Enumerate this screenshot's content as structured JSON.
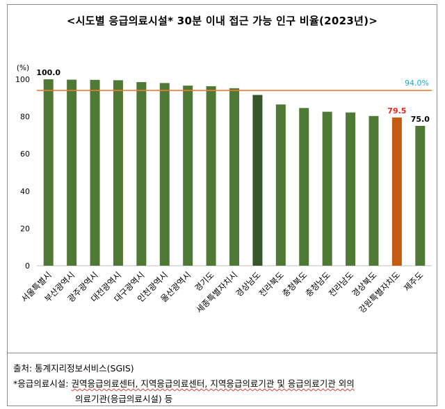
{
  "title": "<시도별 응급의료시설* 30분 이내 접근 가능 인구 비율(2023년)>",
  "chart_data": {
    "type": "bar",
    "title": "<시도별 응급의료시설* 30분 이내 접근 가능 인구 비율(2023년)>",
    "ylabel": "(%)",
    "ylim": [
      0,
      100
    ],
    "yticks": [
      0,
      20,
      40,
      60,
      80,
      100
    ],
    "categories": [
      "서울특별시",
      "부산광역시",
      "광주광역시",
      "대전광역시",
      "대구광역시",
      "인천광역시",
      "울산광역시",
      "경기도",
      "세종특별자치시",
      "경상남도",
      "전라북도",
      "충청북도",
      "충청남도",
      "전라남도",
      "경상북도",
      "강원특별자치도",
      "제주도"
    ],
    "values": [
      100.0,
      99.8,
      99.7,
      99.5,
      98.5,
      98.0,
      96.6,
      96.3,
      95.2,
      91.6,
      86.5,
      84.6,
      82.6,
      82.2,
      80.3,
      79.5,
      75.0
    ],
    "bar_colors": [
      "#4f7a35",
      "#4f7a35",
      "#4f7a35",
      "#4f7a35",
      "#4f7a35",
      "#4f7a35",
      "#4f7a35",
      "#4f7a35",
      "#4f7a35",
      "#37572a",
      "#4f7a35",
      "#4f7a35",
      "#4f7a35",
      "#4f7a35",
      "#4f7a35",
      "#c55a11",
      "#4f7a35"
    ],
    "data_labels": [
      {
        "index": 0,
        "text": "100.0",
        "color": "#000000"
      },
      {
        "index": 15,
        "text": "79.5",
        "color": "#e0261d"
      },
      {
        "index": 16,
        "text": "75.0",
        "color": "#000000"
      }
    ],
    "reference_line": {
      "value": 94.0,
      "label": "94.0%",
      "line_color": "#ed7d31",
      "label_color": "#00b0f0"
    }
  },
  "notes": {
    "source": "출처: 통계지리정보서비스(SGIS)",
    "footnote_prefix": "*응급의료시설:",
    "footnote_line1": "권역응급의료센터, 지역응급의료센터, 지역응급의료기관 및 응급의료기관 외의",
    "footnote_line2": "의료기관(응급의료시설) 등"
  }
}
